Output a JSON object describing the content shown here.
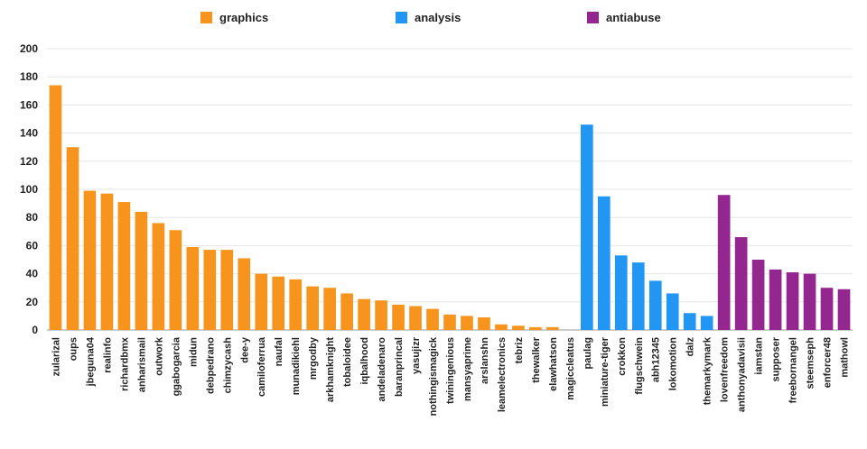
{
  "colors": {
    "graphics": "#F7941D",
    "analysis": "#2196F3",
    "antiabuse": "#93278F",
    "grid": "#e6e6e6",
    "axis": "#222222"
  },
  "chart_data": {
    "type": "bar",
    "ylim": [
      0,
      200
    ],
    "yticks": [
      0,
      20,
      40,
      60,
      80,
      100,
      120,
      140,
      160,
      180,
      200
    ],
    "grid": true,
    "legend_position": "top",
    "series": [
      {
        "name": "graphics",
        "color": "#F7941D"
      },
      {
        "name": "analysis",
        "color": "#2196F3"
      },
      {
        "name": "antiabuse",
        "color": "#93278F"
      }
    ],
    "bars": [
      {
        "label": "zularizal",
        "value": 174,
        "series": "graphics"
      },
      {
        "label": "oups",
        "value": 130,
        "series": "graphics"
      },
      {
        "label": "jbeguna04",
        "value": 99,
        "series": "graphics"
      },
      {
        "label": "realinfo",
        "value": 97,
        "series": "graphics"
      },
      {
        "label": "richardbmx",
        "value": 91,
        "series": "graphics"
      },
      {
        "label": "anharismail",
        "value": 84,
        "series": "graphics"
      },
      {
        "label": "outwork",
        "value": 76,
        "series": "graphics"
      },
      {
        "label": "ggabogarcia",
        "value": 71,
        "series": "graphics"
      },
      {
        "label": "midun",
        "value": 59,
        "series": "graphics"
      },
      {
        "label": "debpedrano",
        "value": 57,
        "series": "graphics"
      },
      {
        "label": "chimzycash",
        "value": 57,
        "series": "graphics"
      },
      {
        "label": "dee-y",
        "value": 51,
        "series": "graphics"
      },
      {
        "label": "camiloferrua",
        "value": 40,
        "series": "graphics"
      },
      {
        "label": "naufal",
        "value": 38,
        "series": "graphics"
      },
      {
        "label": "munadikiehl",
        "value": 36,
        "series": "graphics"
      },
      {
        "label": "mrgodby",
        "value": 31,
        "series": "graphics"
      },
      {
        "label": "arkhamknight",
        "value": 30,
        "series": "graphics"
      },
      {
        "label": "tobaloidee",
        "value": 26,
        "series": "graphics"
      },
      {
        "label": "iqbalhood",
        "value": 22,
        "series": "graphics"
      },
      {
        "label": "andeladenaro",
        "value": 21,
        "series": "graphics"
      },
      {
        "label": "baranprincal",
        "value": 18,
        "series": "graphics"
      },
      {
        "label": "yasujizr",
        "value": 17,
        "series": "graphics"
      },
      {
        "label": "nothingismagick",
        "value": 15,
        "series": "graphics"
      },
      {
        "label": "twiningenious",
        "value": 11,
        "series": "graphics"
      },
      {
        "label": "mansyaprime",
        "value": 10,
        "series": "graphics"
      },
      {
        "label": "arslanshn",
        "value": 9,
        "series": "graphics"
      },
      {
        "label": "leamelectronics",
        "value": 4,
        "series": "graphics"
      },
      {
        "label": "tebriz",
        "value": 3,
        "series": "graphics"
      },
      {
        "label": "thewalker",
        "value": 2,
        "series": "graphics"
      },
      {
        "label": "elawhatson",
        "value": 2,
        "series": "graphics"
      },
      {
        "label": "magiccleatus",
        "value": 0,
        "series": "graphics"
      },
      {
        "label": "paulag",
        "value": 146,
        "series": "analysis"
      },
      {
        "label": "miniature-tiger",
        "value": 95,
        "series": "analysis"
      },
      {
        "label": "crokkon",
        "value": 53,
        "series": "analysis"
      },
      {
        "label": "flugschwein",
        "value": 48,
        "series": "analysis"
      },
      {
        "label": "abh12345",
        "value": 35,
        "series": "analysis"
      },
      {
        "label": "lokomotion",
        "value": 26,
        "series": "analysis"
      },
      {
        "label": "dalz",
        "value": 12,
        "series": "analysis"
      },
      {
        "label": "themarkymark",
        "value": 10,
        "series": "analysis"
      },
      {
        "label": "lovenfreedom",
        "value": 96,
        "series": "antiabuse"
      },
      {
        "label": "anthonyadavisii",
        "value": 66,
        "series": "antiabuse"
      },
      {
        "label": "iamstan",
        "value": 50,
        "series": "antiabuse"
      },
      {
        "label": "supposer",
        "value": 43,
        "series": "antiabuse"
      },
      {
        "label": "freebornangel",
        "value": 41,
        "series": "antiabuse"
      },
      {
        "label": "steemseph",
        "value": 40,
        "series": "antiabuse"
      },
      {
        "label": "enforcer48",
        "value": 30,
        "series": "antiabuse"
      },
      {
        "label": "mathowl",
        "value": 29,
        "series": "antiabuse"
      }
    ]
  }
}
